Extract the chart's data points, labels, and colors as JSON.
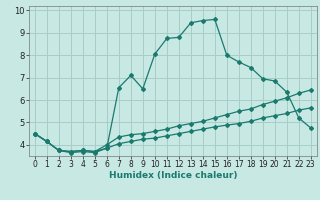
{
  "xlabel": "Humidex (Indice chaleur)",
  "bg_color": "#c8e8e4",
  "grid_color": "#a8ccc8",
  "line_color": "#1a7a6e",
  "xlim": [
    -0.5,
    23.5
  ],
  "ylim": [
    3.5,
    10.2
  ],
  "xticks": [
    0,
    1,
    2,
    3,
    4,
    5,
    6,
    7,
    8,
    9,
    10,
    11,
    12,
    13,
    14,
    15,
    16,
    17,
    18,
    19,
    20,
    21,
    22,
    23
  ],
  "yticks": [
    4,
    5,
    6,
    7,
    8,
    9,
    10
  ],
  "series1_x": [
    0,
    1,
    2,
    3,
    4,
    5,
    6,
    7,
    8,
    9,
    10,
    11,
    12,
    13,
    14,
    15,
    16,
    17,
    18,
    19,
    20,
    21,
    22,
    23
  ],
  "series1_y": [
    4.5,
    4.15,
    3.75,
    3.65,
    3.7,
    3.65,
    3.85,
    6.55,
    7.1,
    6.5,
    8.05,
    8.75,
    8.8,
    9.45,
    9.55,
    9.6,
    8.0,
    7.7,
    7.45,
    6.95,
    6.85,
    6.35,
    5.2,
    4.75
  ],
  "series2_x": [
    0,
    1,
    2,
    3,
    4,
    5,
    6,
    7,
    8,
    9,
    10,
    11,
    12,
    13,
    14,
    15,
    16,
    17,
    18,
    19,
    20,
    21,
    22,
    23
  ],
  "series2_y": [
    4.5,
    4.15,
    3.75,
    3.7,
    3.75,
    3.7,
    4.0,
    4.35,
    4.45,
    4.5,
    4.6,
    4.7,
    4.85,
    4.95,
    5.05,
    5.2,
    5.35,
    5.5,
    5.6,
    5.8,
    5.95,
    6.1,
    6.3,
    6.45
  ],
  "series3_x": [
    0,
    1,
    2,
    3,
    4,
    5,
    6,
    7,
    8,
    9,
    10,
    11,
    12,
    13,
    14,
    15,
    16,
    17,
    18,
    19,
    20,
    21,
    22,
    23
  ],
  "series3_y": [
    4.5,
    4.15,
    3.75,
    3.7,
    3.75,
    3.7,
    3.85,
    4.05,
    4.15,
    4.25,
    4.3,
    4.4,
    4.5,
    4.6,
    4.7,
    4.8,
    4.88,
    4.95,
    5.05,
    5.2,
    5.3,
    5.4,
    5.55,
    5.65
  ],
  "tick_fontsize": 5.5,
  "xlabel_fontsize": 6.5
}
